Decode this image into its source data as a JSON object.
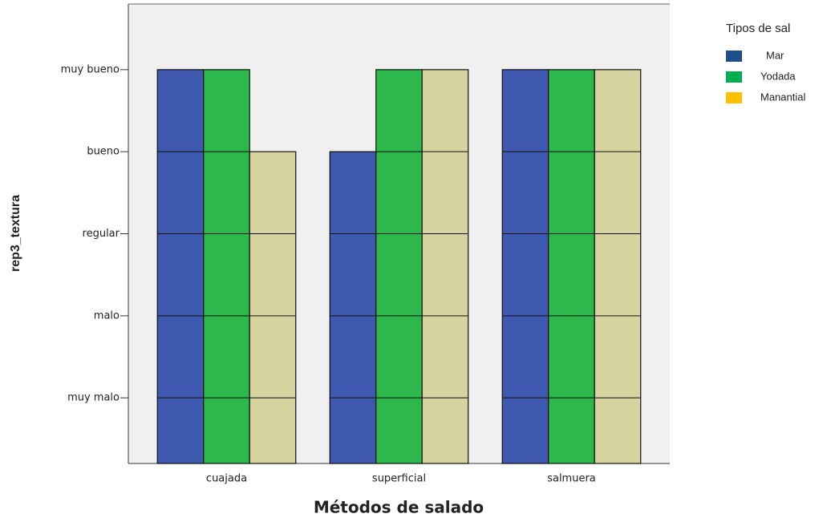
{
  "chart_data": {
    "type": "bar",
    "x_label": "Métodos de salado",
    "y_label": "rep3_textura",
    "categories": [
      "cuajada",
      "superficial",
      "salmuera"
    ],
    "series": [
      {
        "name": "Mar",
        "color": "#3f58b0",
        "legend_color": "#1f4e8c",
        "values": [
          5,
          4,
          5
        ]
      },
      {
        "name": "Yodada",
        "color": "#2db84b",
        "legend_color": "#00b050",
        "values": [
          5,
          5,
          5
        ]
      },
      {
        "name": "Manantial",
        "color": "#d6d3a0",
        "legend_color": "#ffc000",
        "values": [
          4,
          5,
          5
        ]
      }
    ],
    "legend_title": "Tipos de sal",
    "legend": "upper right",
    "ylim": [
      0.2,
      5.8
    ],
    "yticks": [
      {
        "value": 1,
        "label": "muy malo"
      },
      {
        "value": 2,
        "label": "malo"
      },
      {
        "value": 3,
        "label": "regular"
      },
      {
        "value": 4,
        "label": "bueno"
      },
      {
        "value": 5,
        "label": "muy bueno"
      }
    ]
  }
}
